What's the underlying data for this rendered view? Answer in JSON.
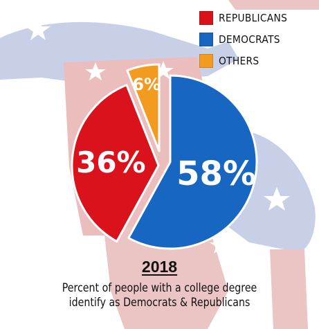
{
  "chart_data": {
    "type": "pie",
    "title": "2018",
    "subtitle_lines": [
      "Percent of people with a college degree",
      "identify as Democrats & Republicans"
    ],
    "categories": [
      "REPUBLICANS",
      "DEMOCRATS",
      "OTHERS"
    ],
    "values": [
      36,
      58,
      6
    ],
    "labels": [
      "36%",
      "58%",
      "6%"
    ],
    "colors": [
      "#d9121b",
      "#1767c2",
      "#f39a21"
    ],
    "exploded": true,
    "legend_position": "top-right"
  },
  "background": {
    "motif": "donkey-and-elephant-icons",
    "colors": [
      "#c7cfe6",
      "#e6b3b3"
    ]
  }
}
